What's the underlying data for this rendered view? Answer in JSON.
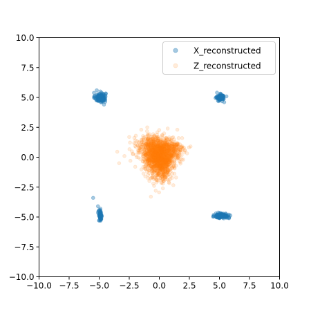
{
  "chart_data": {
    "type": "scatter",
    "title": "",
    "xlabel": "",
    "ylabel": "",
    "xlim": [
      -10,
      10
    ],
    "ylim": [
      -10,
      10
    ],
    "x_ticks": [
      -10,
      -7.5,
      -5,
      -2.5,
      0,
      2.5,
      5,
      7.5,
      10
    ],
    "y_ticks": [
      -10,
      -7.5,
      -5,
      -2.5,
      0,
      2.5,
      5,
      7.5,
      10
    ],
    "x_tick_labels": [
      "−10.0",
      "−7.5",
      "−5.0",
      "−2.5",
      "0.0",
      "2.5",
      "5.0",
      "7.5",
      "10.0"
    ],
    "y_tick_labels": [
      "−10.0",
      "−7.5",
      "−5.0",
      "−2.5",
      "0.0",
      "2.5",
      "5.0",
      "7.5",
      "10.0"
    ],
    "grid": false,
    "legend_position": "top-right",
    "series": [
      {
        "name": "X_reconstructed",
        "color": "#1f77b4",
        "alpha": 0.4,
        "clusters": [
          {
            "center": [
              -4.9,
              5.0
            ],
            "spread": [
              0.22,
              0.2
            ],
            "count": 140
          },
          {
            "center": [
              5.1,
              5.0
            ],
            "spread": [
              0.15,
              0.12
            ],
            "count": 110
          },
          {
            "center": [
              5.2,
              -4.9
            ],
            "spread": [
              0.28,
              0.1
            ],
            "count": 150
          },
          {
            "center": [
              -4.9,
              -4.9
            ],
            "spread": [
              0.07,
              0.22
            ],
            "count": 70
          }
        ],
        "points": [
          [
            -5.5,
            -3.4
          ],
          [
            -5.1,
            -4.1
          ],
          [
            -4.9,
            -4.3
          ],
          [
            5.8,
            -5.1
          ],
          [
            4.8,
            5.4
          ],
          [
            -5.2,
            5.6
          ],
          [
            -4.6,
            4.4
          ],
          [
            5.4,
            4.6
          ],
          [
            4.7,
            -4.7
          ],
          [
            -5.0,
            -5.3
          ]
        ]
      },
      {
        "name": "Z_reconstructed",
        "color": "#ff7f0e",
        "alpha": 0.15,
        "clusters": [
          {
            "center": [
              0.0,
              0.0
            ],
            "spread": [
              0.6,
              0.6
            ],
            "count": 900
          },
          {
            "center": [
              -0.6,
              0.9
            ],
            "spread": [
              0.7,
              0.5
            ],
            "count": 350
          },
          {
            "center": [
              0.9,
              0.6
            ],
            "spread": [
              0.6,
              0.5
            ],
            "count": 250
          },
          {
            "center": [
              0.2,
              -1.0
            ],
            "spread": [
              0.45,
              0.6
            ],
            "count": 250
          }
        ],
        "points": [
          [
            2.6,
            0.9
          ],
          [
            -2.2,
            0.3
          ],
          [
            -2.9,
            0.1
          ],
          [
            -1.5,
            2.3
          ],
          [
            1.5,
            2.3
          ],
          [
            -0.7,
            -3.3
          ],
          [
            -0.3,
            -2.8
          ],
          [
            -2.0,
            -0.8
          ],
          [
            2.0,
            -0.2
          ],
          [
            -1.0,
            2.5
          ],
          [
            0.7,
            2.4
          ],
          [
            -2.4,
            -0.3
          ],
          [
            1.9,
            1.6
          ],
          [
            -0.5,
            -2.2
          ],
          [
            0.3,
            -2.6
          ]
        ]
      }
    ]
  }
}
